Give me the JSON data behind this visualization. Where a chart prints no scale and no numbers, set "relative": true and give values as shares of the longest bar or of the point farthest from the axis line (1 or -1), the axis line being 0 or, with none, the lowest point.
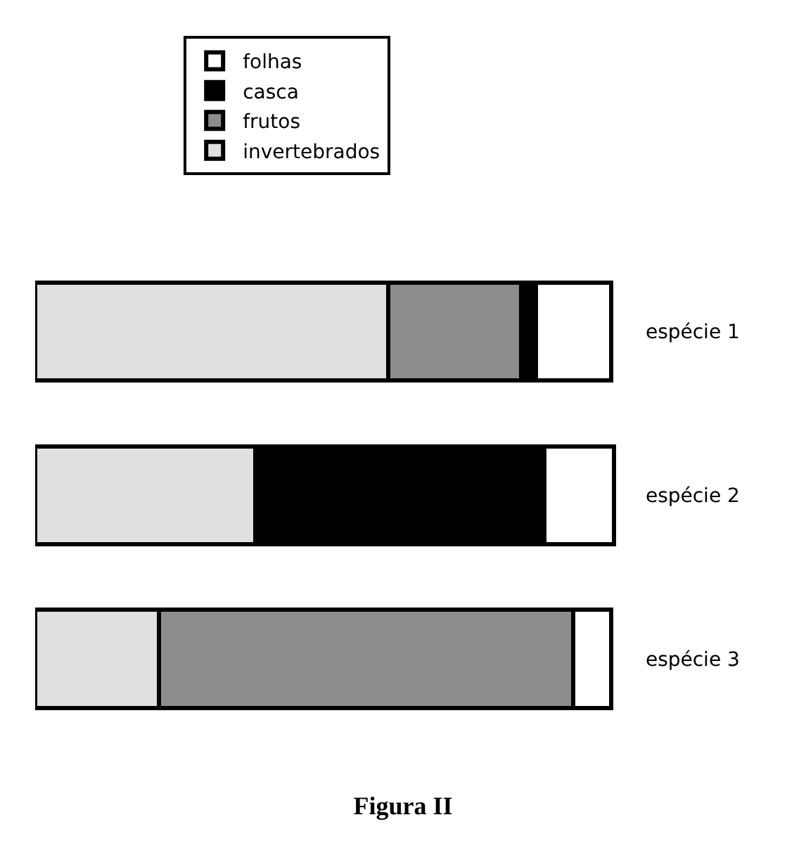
{
  "chart_data": {
    "type": "bar",
    "orientation": "horizontal",
    "stacked": true,
    "relative": true,
    "title": "Figura II",
    "categories": [
      "espécie 1",
      "espécie 2",
      "espécie 3"
    ],
    "series": [
      {
        "name": "invertebrados",
        "color": "#e0e0e0",
        "values": [
          0.61,
          0.38,
          0.214
        ]
      },
      {
        "name": "frutos",
        "color": "#8c8c8c",
        "values": [
          0.23,
          null,
          0.716
        ]
      },
      {
        "name": "casca",
        "color": "#000000",
        "values": [
          0.026,
          0.5,
          null
        ]
      },
      {
        "name": "folhas",
        "color": "#ffffff",
        "values": [
          0.13,
          0.12,
          0.066
        ]
      }
    ],
    "legend": "top left"
  }
}
